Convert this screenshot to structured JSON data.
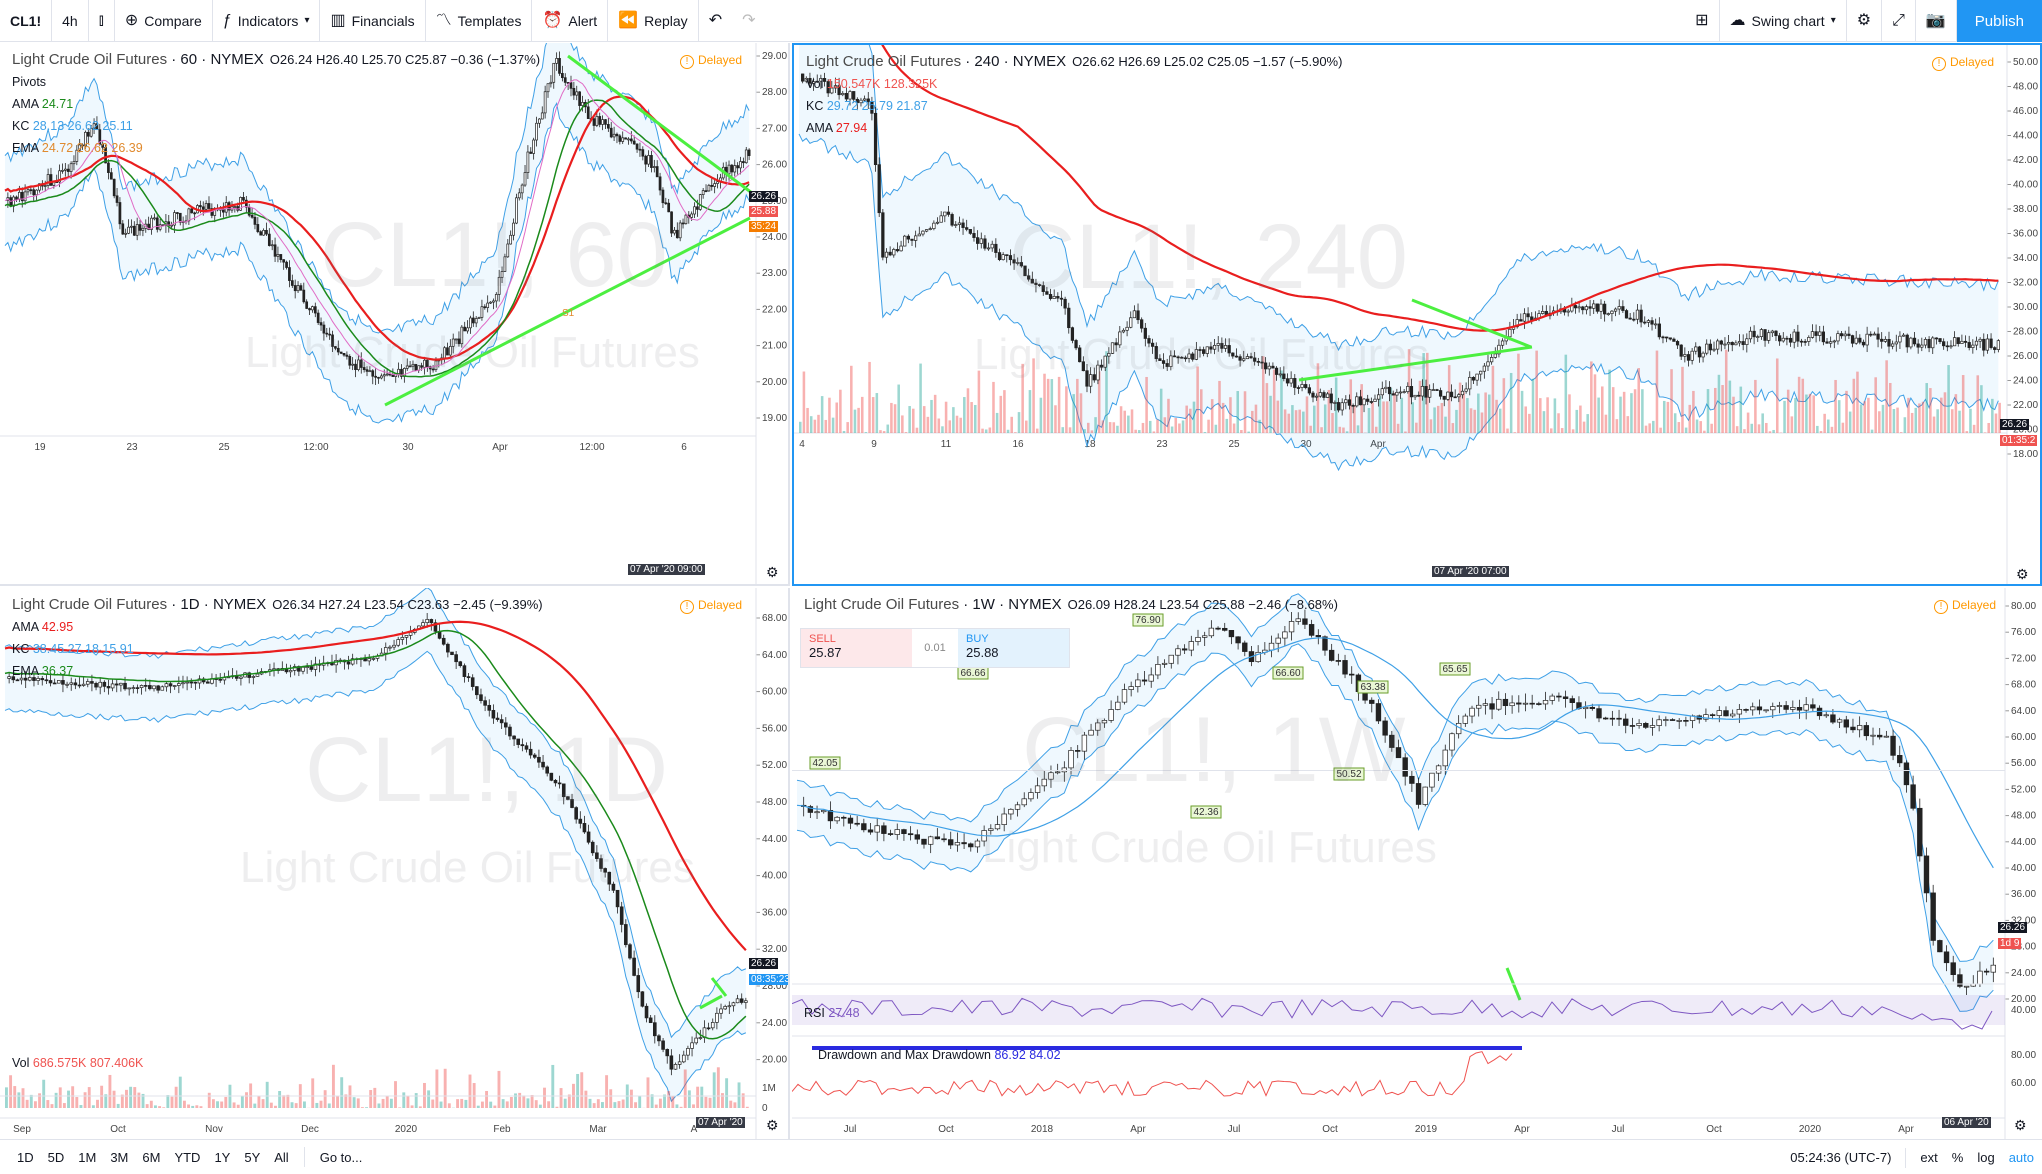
{
  "toolbar": {
    "symbol": "CL1!",
    "interval": "4h",
    "compare": "Compare",
    "indicators": "Indicators",
    "financials": "Financials",
    "templates": "Templates",
    "alert": "Alert",
    "replay": "Replay",
    "layout_name": "Swing chart",
    "publish": "Publish"
  },
  "colors": {
    "accent": "#2196f3",
    "up": "#26a69a",
    "down": "#ef5350",
    "ema_red": "#e91e1e",
    "trend_green": "#4cef40",
    "kc_blue": "#3fa0e6",
    "delayed": "#ff9800"
  },
  "icons": [
    "chart-type-icon",
    "compare-plus-icon",
    "indicators-fx-icon",
    "chevron-down-icon",
    "financials-icon",
    "templates-icon",
    "alert-clock-icon",
    "replay-icon",
    "undo-icon",
    "redo-icon",
    "layout-grid-icon",
    "cloud-icon",
    "settings-gear-icon",
    "fullscreen-icon",
    "camera-icon",
    "gear-icon"
  ],
  "panes": [
    {
      "id": "p60",
      "symbol_desc": "Light Crude Oil Futures",
      "interval": "60",
      "exchange": "NYMEX",
      "ohlc": "O26.24 H26.40 L25.70 C25.87 −0.36 (−1.37%)",
      "delayed": "Delayed",
      "watermark": "CL1!, 60",
      "watermark_sub": "Light Crude Oil Futures",
      "indicators": [
        {
          "name": "Pivots",
          "values": ""
        },
        {
          "name": "AMA",
          "values": "24.71"
        },
        {
          "name": "KC",
          "values": "28.13 26.62 25.11"
        },
        {
          "name": "EMA",
          "values": "24.72 26.62 26.39"
        }
      ],
      "yticks": [
        "29.00",
        "28.00",
        "27.00",
        "26.00",
        "25.00",
        "24.00",
        "23.00",
        "22.00",
        "21.00",
        "20.00",
        "19.00"
      ],
      "xticks": [
        "19",
        "23",
        "25",
        "12:00",
        "30",
        "Apr",
        "12:00",
        "6"
      ],
      "cursor_time": "07 Apr '20  09:00",
      "price_tags": [
        "26.26",
        "25.88",
        "35:24"
      ],
      "pivot_label": "S1"
    },
    {
      "id": "p240",
      "symbol_desc": "Light Crude Oil Futures",
      "interval": "240",
      "exchange": "NYMEX",
      "ohlc": "O26.62 H26.69 L25.02 C25.05 −1.57 (−5.90%)",
      "delayed": "Delayed",
      "watermark": "CL1!, 240",
      "watermark_sub": "Light Crude Oil Futures",
      "indicators": [
        {
          "name": "Vol",
          "values": "150.547K 128.325K"
        },
        {
          "name": "KC",
          "values": "29.72 25.79 21.87"
        },
        {
          "name": "AMA",
          "values": "27.94"
        }
      ],
      "yticks": [
        "50.00",
        "48.00",
        "46.00",
        "44.00",
        "42.00",
        "40.00",
        "38.00",
        "36.00",
        "34.00",
        "32.00",
        "30.00",
        "28.00",
        "26.00",
        "24.00",
        "22.00",
        "20.00",
        "18.00"
      ],
      "xticks": [
        "4",
        "9",
        "11",
        "16",
        "18",
        "23",
        "25",
        "30",
        "Apr"
      ],
      "cursor_time": "07 Apr '20  07:00",
      "price_tags": [
        "26.26",
        "01:35:2"
      ]
    },
    {
      "id": "p1d",
      "symbol_desc": "Light Crude Oil Futures",
      "interval": "1D",
      "exchange": "NYMEX",
      "ohlc": "O26.34 H27.24 L23.54 C23.63 −2.45 (−9.39%)",
      "delayed": "Delayed",
      "watermark": "CL1!, 1D",
      "watermark_sub": "Light Crude Oil Futures",
      "indicators": [
        {
          "name": "AMA",
          "values": "42.95"
        },
        {
          "name": "KC",
          "values": "38.45 27.18 15.91"
        },
        {
          "name": "EMA",
          "values": "36.37"
        }
      ],
      "vol_label": "Vol",
      "vol_values": "686.575K 807.406K",
      "yticks": [
        "68.00",
        "64.00",
        "60.00",
        "56.00",
        "52.00",
        "48.00",
        "44.00",
        "40.00",
        "36.00",
        "32.00",
        "28.00",
        "24.00",
        "20.00"
      ],
      "vol_ticks": [
        "1M",
        "0"
      ],
      "xticks": [
        "Sep",
        "Oct",
        "Nov",
        "Dec",
        "2020",
        "Feb",
        "Mar",
        "A"
      ],
      "cursor_time": "07 Apr '20",
      "price_tags": [
        "26.26",
        "08:35:23"
      ]
    },
    {
      "id": "p1w",
      "symbol_desc": "Light Crude Oil Futures",
      "interval": "1W",
      "exchange": "NYMEX",
      "ohlc": "O26.09 H28.24 L23.54 C25.88 −2.46 (−8.68%)",
      "delayed": "Delayed",
      "watermark": "CL1!, 1W",
      "watermark_sub": "Light Crude Oil Futures",
      "trade": {
        "sell_label": "SELL",
        "sell_price": "25.87",
        "spread": "0.01",
        "buy_label": "BUY",
        "buy_price": "25.88"
      },
      "rsi_label": "RSI",
      "rsi_value": "27.48",
      "dd_label": "Drawdown and Max Drawdown",
      "dd_values": "86.92 84.02",
      "yticks": [
        "80.00",
        "76.00",
        "72.00",
        "68.00",
        "64.00",
        "60.00",
        "56.00",
        "52.00",
        "48.00",
        "44.00",
        "40.00",
        "36.00",
        "32.00",
        "28.00",
        "24.00",
        "20.00"
      ],
      "rsi_ticks": [
        "40.00"
      ],
      "dd_ticks": [
        "80.00",
        "60.00"
      ],
      "xticks": [
        "Jul",
        "Oct",
        "2018",
        "Apr",
        "Jul",
        "Oct",
        "2019",
        "Apr",
        "Jul",
        "Oct",
        "2020",
        "Apr"
      ],
      "cursor_time": "06 Apr '20",
      "price_tags": [
        "26.26",
        "1d 9"
      ],
      "peak_labels": [
        "76.90",
        "66.66",
        "66.60",
        "63.38",
        "65.65",
        "42.05",
        "42.36",
        "50.52"
      ]
    }
  ],
  "bottom": {
    "ranges": [
      "1D",
      "5D",
      "1M",
      "3M",
      "6M",
      "YTD",
      "1Y",
      "5Y",
      "All"
    ],
    "goto": "Go to...",
    "clock": "05:24:36 (UTC-7)",
    "ext": "ext",
    "pct": "%",
    "log": "log",
    "auto": "auto"
  }
}
